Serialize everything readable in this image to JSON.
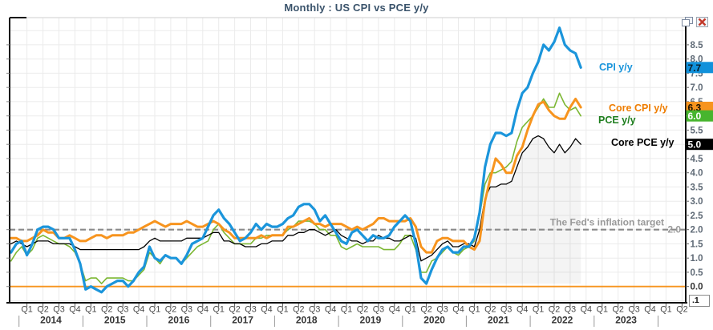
{
  "title": "Monthly : US CPI vs PCE y/y",
  "page_button": ".1",
  "window_controls": {
    "restore_icon": "restore-window",
    "close_icon": "close-window"
  },
  "chart_data": {
    "type": "line",
    "title": "Monthly : US CPI vs PCE y/y",
    "frequency": "monthly",
    "x_start": "2013-11",
    "x_end": "2022-10",
    "ylim": [
      -0.5,
      9.5
    ],
    "grid": true,
    "y_axis": {
      "side": "right",
      "tick_min": 0.0,
      "tick_max": 8.5,
      "step": 0.5
    },
    "x_axis": {
      "years": [
        "2014",
        "2015",
        "2016",
        "2017",
        "2018",
        "2019",
        "2020",
        "2021",
        "2022",
        "2023"
      ],
      "quarters": [
        "Q1",
        "Q2",
        "Q3",
        "Q4"
      ],
      "extra_quarters": [
        "Q1",
        "Q2"
      ]
    },
    "reference_lines": [
      {
        "label": "The Fed's inflation target",
        "value": 2.0,
        "style": "dashed",
        "color": "#8a8a8a",
        "label_color": "#9a9a9a"
      },
      {
        "label": "",
        "value": 0.0,
        "style": "solid",
        "color": "#f7941e"
      }
    ],
    "series": [
      {
        "name": "CPI y/y",
        "color": "#1b95db",
        "label_color": "#1b95db",
        "box_color": "#1191db",
        "box_text_color": "#0a1a26",
        "width": 3.2,
        "last_value": "7.7",
        "values": [
          1.2,
          1.5,
          1.6,
          1.1,
          1.5,
          2.0,
          2.1,
          2.1,
          2.0,
          1.7,
          1.7,
          1.7,
          1.3,
          0.8,
          -0.1,
          0.0,
          -0.1,
          -0.2,
          0.0,
          0.1,
          0.2,
          0.2,
          0.0,
          0.2,
          0.5,
          0.7,
          1.4,
          1.0,
          0.9,
          1.1,
          1.0,
          1.0,
          0.8,
          1.1,
          1.5,
          1.6,
          1.7,
          2.1,
          2.5,
          2.7,
          2.4,
          2.2,
          1.9,
          1.6,
          1.7,
          1.9,
          2.2,
          2.0,
          2.2,
          2.1,
          2.1,
          2.2,
          2.4,
          2.5,
          2.8,
          2.9,
          2.9,
          2.7,
          2.3,
          2.5,
          2.2,
          1.9,
          1.6,
          1.5,
          1.9,
          2.0,
          1.8,
          1.6,
          1.8,
          1.7,
          1.7,
          1.8,
          2.1,
          2.3,
          2.5,
          2.3,
          1.5,
          0.3,
          0.1,
          0.6,
          1.0,
          1.3,
          1.4,
          1.2,
          1.2,
          1.4,
          1.4,
          1.7,
          2.6,
          4.2,
          5.0,
          5.4,
          5.4,
          5.3,
          5.4,
          6.2,
          6.8,
          7.0,
          7.5,
          7.9,
          8.5,
          8.3,
          8.6,
          9.1,
          8.5,
          8.3,
          8.2,
          7.7
        ]
      },
      {
        "name": "Core CPI y/y",
        "color": "#f7941e",
        "label_color": "#ef7d00",
        "box_color": "#f7941e",
        "box_text_color": "#1a1000",
        "width": 3.0,
        "last_value": "6.3",
        "values": [
          1.7,
          1.7,
          1.6,
          1.6,
          1.7,
          1.8,
          2.0,
          1.9,
          1.9,
          1.7,
          1.7,
          1.8,
          1.7,
          1.6,
          1.6,
          1.7,
          1.8,
          1.8,
          1.7,
          1.8,
          1.8,
          1.8,
          1.9,
          1.9,
          2.0,
          2.1,
          2.2,
          2.3,
          2.2,
          2.1,
          2.2,
          2.2,
          2.2,
          2.3,
          2.2,
          2.1,
          2.1,
          2.2,
          2.3,
          2.2,
          2.0,
          1.9,
          1.7,
          1.7,
          1.7,
          1.7,
          1.7,
          1.8,
          1.7,
          1.8,
          1.8,
          1.8,
          2.1,
          2.1,
          2.2,
          2.3,
          2.4,
          2.2,
          2.2,
          2.1,
          2.2,
          2.2,
          2.2,
          2.1,
          2.0,
          2.1,
          2.0,
          2.1,
          2.2,
          2.4,
          2.4,
          2.3,
          2.3,
          2.3,
          2.3,
          2.4,
          2.1,
          1.4,
          1.2,
          1.2,
          1.6,
          1.7,
          1.7,
          1.6,
          1.6,
          1.6,
          1.4,
          1.3,
          1.6,
          3.0,
          3.8,
          4.5,
          4.3,
          4.0,
          4.0,
          4.6,
          4.9,
          5.5,
          6.0,
          6.4,
          6.5,
          6.2,
          6.0,
          5.9,
          5.9,
          6.3,
          6.6,
          6.3
        ]
      },
      {
        "name": "PCE y/y",
        "color": "#7cb733",
        "label_color": "#1e7e1e",
        "box_color": "#47b52e",
        "box_text_color": "#ffffff",
        "width": 1.6,
        "last_value": "6.0",
        "values": [
          0.9,
          1.2,
          1.4,
          1.1,
          1.3,
          1.7,
          1.8,
          1.7,
          1.6,
          1.5,
          1.5,
          1.4,
          1.2,
          0.8,
          0.2,
          0.3,
          0.3,
          0.1,
          0.3,
          0.3,
          0.3,
          0.3,
          0.2,
          0.2,
          0.4,
          0.6,
          1.2,
          1.0,
          0.8,
          1.1,
          1.0,
          1.0,
          0.8,
          1.0,
          1.2,
          1.4,
          1.5,
          1.6,
          2.0,
          2.2,
          1.9,
          1.7,
          1.5,
          1.5,
          1.5,
          1.5,
          1.7,
          1.7,
          1.8,
          1.8,
          1.8,
          1.8,
          2.0,
          2.1,
          2.3,
          2.3,
          2.3,
          2.2,
          2.0,
          2.0,
          1.8,
          1.8,
          1.4,
          1.3,
          1.4,
          1.5,
          1.4,
          1.4,
          1.4,
          1.4,
          1.3,
          1.3,
          1.3,
          1.5,
          1.8,
          1.8,
          1.3,
          0.5,
          0.5,
          0.9,
          1.0,
          1.2,
          1.4,
          1.2,
          1.1,
          1.3,
          1.4,
          1.6,
          2.5,
          3.6,
          4.0,
          4.0,
          4.1,
          4.2,
          4.4,
          5.1,
          5.6,
          5.8,
          6.0,
          6.3,
          6.6,
          6.3,
          6.3,
          6.8,
          6.4,
          6.2,
          6.3,
          6.0
        ]
      },
      {
        "name": "Core PCE y/y",
        "color": "#000000",
        "label_color": "#000000",
        "box_color": "#000000",
        "box_text_color": "#ffffff",
        "width": 1.3,
        "last_value": "5.0",
        "area_fill_from_index": 86,
        "values": [
          1.5,
          1.6,
          1.5,
          1.4,
          1.5,
          1.6,
          1.6,
          1.6,
          1.5,
          1.5,
          1.5,
          1.5,
          1.4,
          1.3,
          1.3,
          1.3,
          1.3,
          1.3,
          1.3,
          1.3,
          1.3,
          1.3,
          1.3,
          1.3,
          1.3,
          1.4,
          1.6,
          1.7,
          1.6,
          1.6,
          1.6,
          1.6,
          1.6,
          1.7,
          1.7,
          1.7,
          1.7,
          1.8,
          1.9,
          1.9,
          1.6,
          1.6,
          1.5,
          1.5,
          1.4,
          1.4,
          1.4,
          1.5,
          1.5,
          1.6,
          1.6,
          1.6,
          1.8,
          1.8,
          1.9,
          1.9,
          2.0,
          2.0,
          1.9,
          1.8,
          1.9,
          2.0,
          1.8,
          1.7,
          1.6,
          1.6,
          1.5,
          1.6,
          1.6,
          1.8,
          1.7,
          1.7,
          1.6,
          1.6,
          1.7,
          1.8,
          1.7,
          0.9,
          1.0,
          1.1,
          1.3,
          1.5,
          1.6,
          1.4,
          1.4,
          1.5,
          1.5,
          1.4,
          2.0,
          3.1,
          3.5,
          3.5,
          3.6,
          3.6,
          3.7,
          4.2,
          4.7,
          4.9,
          5.2,
          5.3,
          5.2,
          4.9,
          4.7,
          5.0,
          4.7,
          4.9,
          5.2,
          5.0
        ]
      }
    ]
  }
}
